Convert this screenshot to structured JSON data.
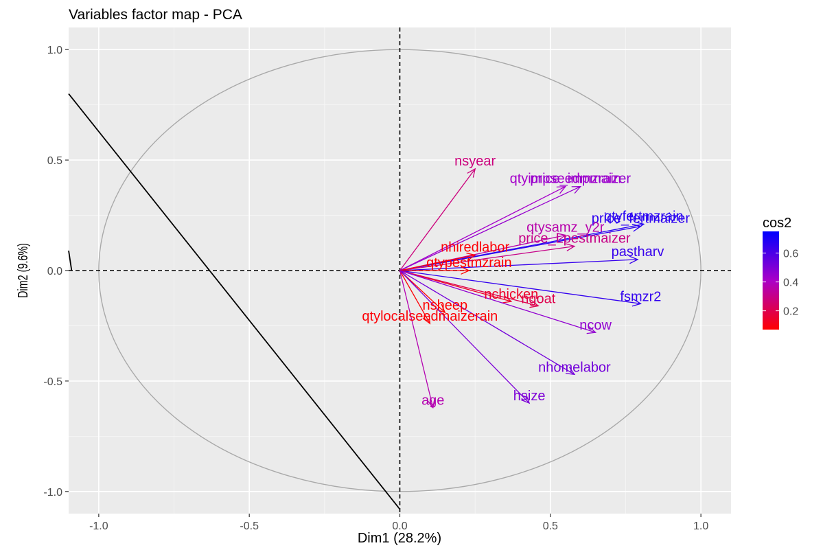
{
  "chart_data": {
    "type": "scatter",
    "subtype": "pca-variable-correlation-circle",
    "title": "Variables factor map - PCA",
    "xlabel": "Dim1 (28.2%)",
    "ylabel": "Dim2 (9.6%)",
    "xlim": [
      -1.1,
      1.1
    ],
    "ylim": [
      -1.1,
      1.1
    ],
    "xticks": [
      -1.0,
      -0.5,
      0.0,
      0.5,
      1.0
    ],
    "yticks": [
      -1.0,
      -0.5,
      0.0,
      0.5,
      1.0
    ],
    "xtick_labels": [
      "-1.0",
      "-0.5",
      "0.0",
      "0.5",
      "1.0"
    ],
    "ytick_labels": [
      "-1.0",
      "-0.5",
      "0.0",
      "0.5",
      "1.0"
    ],
    "grid": true,
    "background": "#EBEBEB",
    "unit_circle": true,
    "reference_line": {
      "x1": -1.1,
      "y1": 0.8,
      "x2": 0.0,
      "y2": -1.08
    },
    "legend": {
      "title": "cos2",
      "placement": "right",
      "ticks": [
        "0.6",
        "0.4",
        "0.2"
      ],
      "tick_values": [
        0.6,
        0.4,
        0.2
      ],
      "range": [
        0.07,
        0.75
      ],
      "colors": {
        "low": "#FF0000",
        "mid": "#AA00C8",
        "high": "#0000FF"
      }
    },
    "variables": [
      {
        "name": "nsyear",
        "x": 0.25,
        "y": 0.46,
        "cos2": 0.28
      },
      {
        "name": "qtyimpseedmzrain",
        "x": 0.55,
        "y": 0.38,
        "cos2": 0.42
      },
      {
        "name": "price_impmaizer",
        "x": 0.6,
        "y": 0.38,
        "cos2": 0.45
      },
      {
        "name": "qtyfertmzrain",
        "x": 0.81,
        "y": 0.21,
        "cos2": 0.68
      },
      {
        "name": "price_fertmaizer",
        "x": 0.8,
        "y": 0.2,
        "cos2": 0.66
      },
      {
        "name": "qtysamz_y2r",
        "x": 0.55,
        "y": 0.16,
        "cos2": 0.36
      },
      {
        "name": "price_Lpestmaizer",
        "x": 0.58,
        "y": 0.11,
        "cos2": 0.3
      },
      {
        "name": "pastharv",
        "x": 0.79,
        "y": 0.05,
        "cos2": 0.64
      },
      {
        "name": "nhiredlabor",
        "x": 0.25,
        "y": 0.07,
        "cos2": 0.08
      },
      {
        "name": "qtypestmzrain",
        "x": 0.23,
        "y": 0.0,
        "cos2": 0.07
      },
      {
        "name": "fsmzr2",
        "x": 0.8,
        "y": -0.15,
        "cos2": 0.65
      },
      {
        "name": "nchicken",
        "x": 0.37,
        "y": -0.14,
        "cos2": 0.14
      },
      {
        "name": "ngoat",
        "x": 0.46,
        "y": -0.16,
        "cos2": 0.2
      },
      {
        "name": "ncow",
        "x": 0.65,
        "y": -0.28,
        "cos2": 0.46
      },
      {
        "name": "nsheep",
        "x": 0.15,
        "y": -0.19,
        "cos2": 0.07
      },
      {
        "name": "qtylocalseedmaizerain",
        "x": 0.1,
        "y": -0.24,
        "cos2": 0.08
      },
      {
        "name": "nhomelabor",
        "x": 0.58,
        "y": -0.47,
        "cos2": 0.52
      },
      {
        "name": "hsize",
        "x": 0.43,
        "y": -0.6,
        "cos2": 0.5
      },
      {
        "name": "age",
        "x": 0.11,
        "y": -0.62,
        "cos2": 0.37
      }
    ]
  }
}
